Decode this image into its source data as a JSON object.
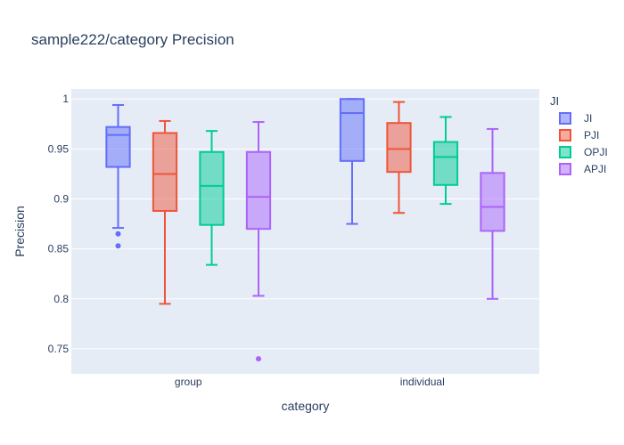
{
  "chart_data": {
    "type": "box",
    "title": "sample222/category Precision",
    "xlabel": "category",
    "ylabel": "Precision",
    "categories": [
      "group",
      "individual"
    ],
    "ylim": [
      0.725,
      1.01
    ],
    "yticks": [
      0.75,
      0.8,
      0.85,
      0.9,
      0.95,
      1
    ],
    "ytick_labels": [
      "0.75",
      "0.8",
      "0.85",
      "0.9",
      "0.95",
      "1"
    ],
    "legend_title": "JI",
    "legend_position": "top-right",
    "grid": true,
    "series": [
      {
        "name": "JI",
        "color": "#636efa",
        "boxes": [
          {
            "category": "group",
            "min": 0.871,
            "q1": 0.932,
            "median": 0.964,
            "q3": 0.972,
            "max": 0.994,
            "outliers": [
              0.865,
              0.853
            ]
          },
          {
            "category": "individual",
            "min": 0.875,
            "q1": 0.938,
            "median": 0.986,
            "q3": 1.0,
            "max": 1.0,
            "outliers": []
          }
        ]
      },
      {
        "name": "PJI",
        "color": "#ef553b",
        "boxes": [
          {
            "category": "group",
            "min": 0.795,
            "q1": 0.888,
            "median": 0.925,
            "q3": 0.966,
            "max": 0.978,
            "outliers": []
          },
          {
            "category": "individual",
            "min": 0.886,
            "q1": 0.927,
            "median": 0.95,
            "q3": 0.976,
            "max": 0.997,
            "outliers": []
          }
        ]
      },
      {
        "name": "OPJI",
        "color": "#00cc96",
        "boxes": [
          {
            "category": "group",
            "min": 0.834,
            "q1": 0.874,
            "median": 0.913,
            "q3": 0.947,
            "max": 0.968,
            "outliers": []
          },
          {
            "category": "individual",
            "min": 0.895,
            "q1": 0.914,
            "median": 0.942,
            "q3": 0.957,
            "max": 0.982,
            "outliers": []
          }
        ]
      },
      {
        "name": "APJI",
        "color": "#ab63fa",
        "boxes": [
          {
            "category": "group",
            "min": 0.803,
            "q1": 0.87,
            "median": 0.902,
            "q3": 0.947,
            "max": 0.977,
            "outliers": [
              0.74
            ]
          },
          {
            "category": "individual",
            "min": 0.8,
            "q1": 0.868,
            "median": 0.892,
            "q3": 0.926,
            "max": 0.97,
            "outliers": []
          }
        ]
      }
    ]
  }
}
